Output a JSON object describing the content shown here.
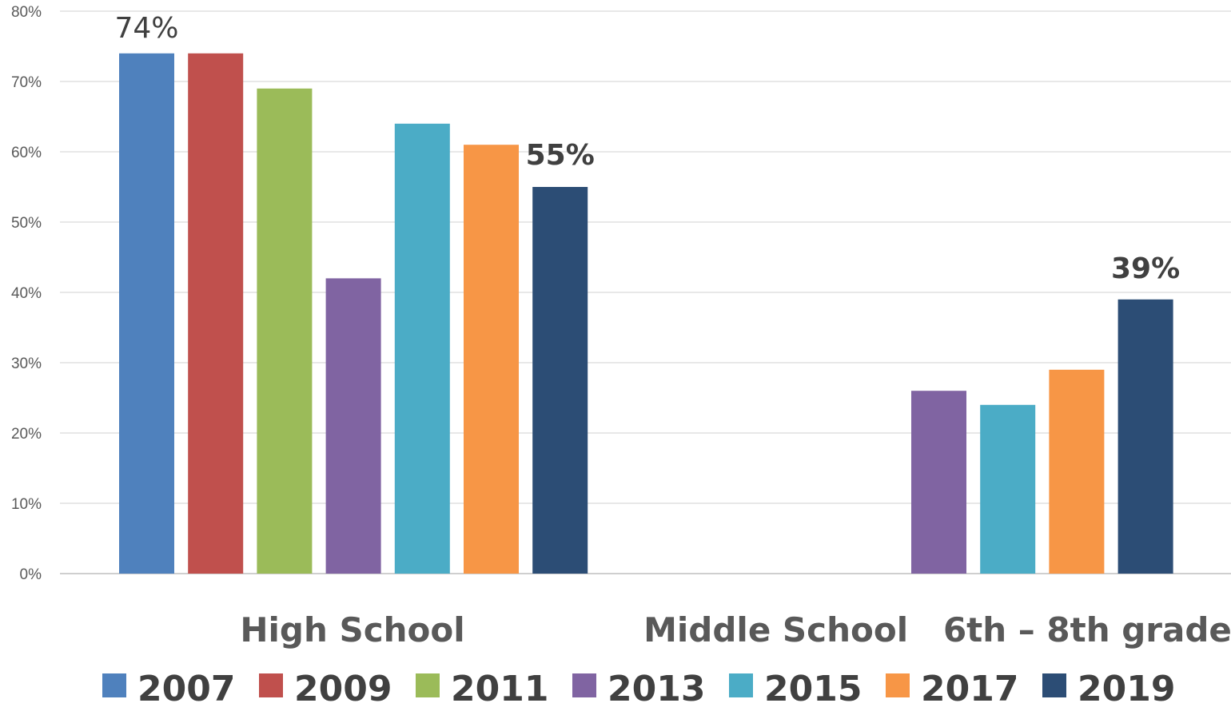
{
  "chart_data": {
    "type": "bar",
    "title": "",
    "xlabel": "",
    "ylabel": "",
    "ylim": [
      0,
      0.8
    ],
    "y_ticks": [
      "0%",
      "10%",
      "20%",
      "30%",
      "40%",
      "50%",
      "60%",
      "70%",
      "80%"
    ],
    "grid": true,
    "legend_position": "bottom",
    "categories": [
      "High School",
      "Middle School   6th – 8th grade"
    ],
    "series": [
      {
        "name": "2007",
        "color": "#4f81bd",
        "values": [
          0.74,
          null
        ],
        "labels": [
          "74%",
          null
        ]
      },
      {
        "name": "2009",
        "color": "#c0504d",
        "values": [
          0.74,
          null
        ],
        "labels": [
          null,
          null
        ]
      },
      {
        "name": "2011",
        "color": "#9bbb59",
        "values": [
          0.69,
          null
        ],
        "labels": [
          null,
          null
        ]
      },
      {
        "name": "2013",
        "color": "#8064a2",
        "values": [
          0.42,
          0.26
        ],
        "labels": [
          null,
          null
        ]
      },
      {
        "name": "2015",
        "color": "#4bacc6",
        "values": [
          0.64,
          0.24
        ],
        "labels": [
          null,
          null
        ]
      },
      {
        "name": "2017",
        "color": "#f79646",
        "values": [
          0.61,
          0.29
        ],
        "labels": [
          null,
          null
        ]
      },
      {
        "name": "2019",
        "color": "#2c4d75",
        "values": [
          0.55,
          0.39
        ],
        "labels": [
          "55%",
          "39%"
        ]
      }
    ]
  }
}
